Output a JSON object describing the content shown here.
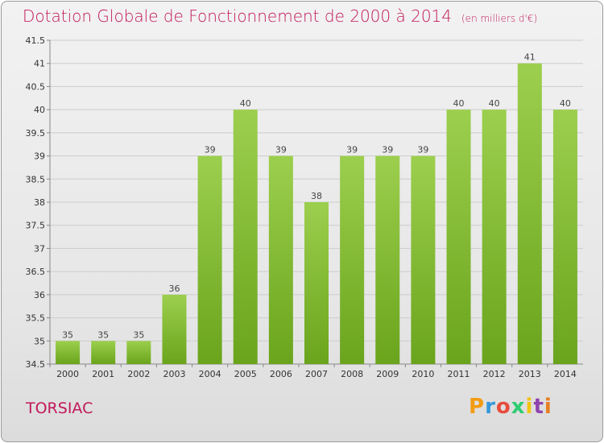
{
  "title": "Dotation Globale de Fonctionnement de 2000 à 2014",
  "subtitle": "(en milliers d'€)",
  "town": "TORSIAC",
  "logo": {
    "text": "Proxiti",
    "colors": [
      "#f39c12",
      "#3498db",
      "#e74c3c",
      "#2ecc71",
      "#f1c40f",
      "#8e44ad",
      "#e67e22"
    ]
  },
  "colors": {
    "title": "#c2185b",
    "bar_light": "#9ccf4e",
    "bar_dark": "#6aa41c",
    "grid": "#cccccc"
  },
  "chart_data": {
    "type": "bar",
    "title": "Dotation Globale de Fonctionnement de 2000 à 2014",
    "subtitle": "(en milliers d'€)",
    "xlabel": "",
    "ylabel": "",
    "categories": [
      "2000",
      "2001",
      "2002",
      "2003",
      "2004",
      "2005",
      "2006",
      "2007",
      "2008",
      "2009",
      "2010",
      "2011",
      "2012",
      "2013",
      "2014"
    ],
    "values": [
      35,
      35,
      35,
      36,
      39,
      40,
      39,
      38,
      39,
      39,
      39,
      40,
      40,
      41,
      40
    ],
    "data_labels": [
      "35",
      "35",
      "35",
      "36",
      "39",
      "40",
      "39",
      "38",
      "39",
      "39",
      "39",
      "40",
      "40",
      "41",
      "40"
    ],
    "ylim": [
      34.5,
      41.5
    ],
    "yticks": [
      34.5,
      35,
      35.5,
      36,
      36.5,
      37,
      37.5,
      38,
      38.5,
      39,
      39.5,
      40,
      40.5,
      41,
      41.5
    ],
    "ytick_labels": [
      "34.5",
      "35",
      "35.5",
      "36",
      "36.5",
      "37",
      "37.5",
      "38",
      "38.5",
      "39",
      "39.5",
      "40",
      "40.5",
      "41",
      "41.5"
    ],
    "grid": true,
    "legend": "none"
  }
}
